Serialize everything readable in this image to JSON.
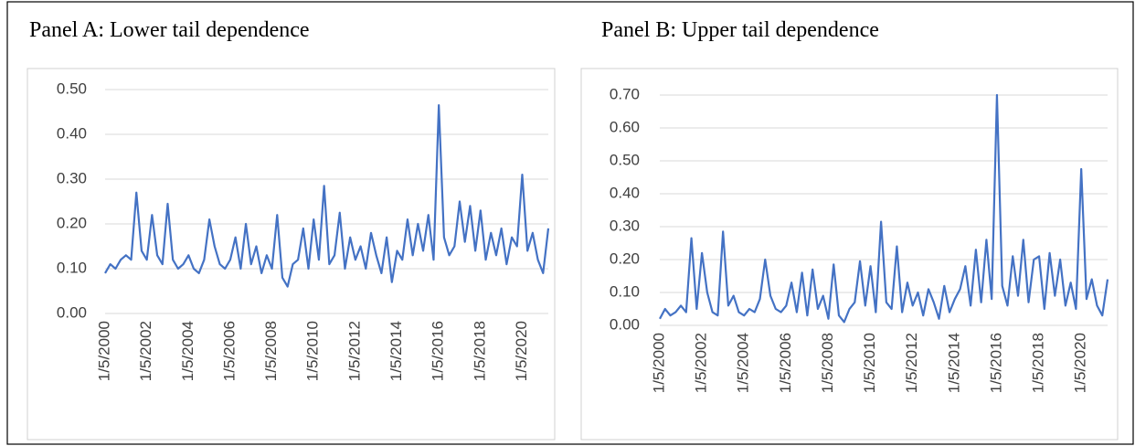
{
  "chart_data": [
    {
      "type": "line",
      "title": "Panel A: Lower tail dependence",
      "categories": [
        "1/5/2000",
        null,
        null,
        null,
        null,
        null,
        null,
        null,
        "1/5/2002",
        null,
        null,
        null,
        null,
        null,
        null,
        null,
        "1/5/2004",
        null,
        null,
        null,
        null,
        null,
        null,
        null,
        "1/5/2006",
        null,
        null,
        null,
        null,
        null,
        null,
        null,
        "1/5/2008",
        null,
        null,
        null,
        null,
        null,
        null,
        null,
        "1/5/2010",
        null,
        null,
        null,
        null,
        null,
        null,
        null,
        "1/5/2012",
        null,
        null,
        null,
        null,
        null,
        null,
        null,
        "1/5/2014",
        null,
        null,
        null,
        null,
        null,
        null,
        null,
        "1/5/2016",
        null,
        null,
        null,
        null,
        null,
        null,
        null,
        "1/5/2018",
        null,
        null,
        null,
        null,
        null,
        null,
        null,
        "1/5/2020",
        null,
        null,
        null,
        null,
        null
      ],
      "values": [
        0.09,
        0.11,
        0.1,
        0.12,
        0.13,
        0.12,
        0.27,
        0.14,
        0.12,
        0.22,
        0.13,
        0.11,
        0.245,
        0.12,
        0.1,
        0.11,
        0.13,
        0.1,
        0.09,
        0.12,
        0.21,
        0.15,
        0.11,
        0.1,
        0.12,
        0.17,
        0.1,
        0.2,
        0.11,
        0.15,
        0.09,
        0.13,
        0.1,
        0.22,
        0.08,
        0.06,
        0.11,
        0.12,
        0.19,
        0.1,
        0.21,
        0.12,
        0.285,
        0.11,
        0.13,
        0.225,
        0.1,
        0.17,
        0.12,
        0.15,
        0.1,
        0.18,
        0.13,
        0.09,
        0.17,
        0.07,
        0.14,
        0.12,
        0.21,
        0.13,
        0.2,
        0.14,
        0.22,
        0.12,
        0.465,
        0.17,
        0.13,
        0.15,
        0.25,
        0.16,
        0.24,
        0.14,
        0.23,
        0.12,
        0.18,
        0.13,
        0.19,
        0.11,
        0.17,
        0.15,
        0.31,
        0.14,
        0.18,
        0.12,
        0.09,
        0.19
      ],
      "color": "#4472c4",
      "ylim": [
        0,
        0.5
      ],
      "yticks": [
        {
          "value": 0,
          "label": "0.00"
        },
        {
          "value": 0.1,
          "label": "0.10"
        },
        {
          "value": 0.2,
          "label": "0.20"
        },
        {
          "value": 0.3,
          "label": "0.30"
        },
        {
          "value": 0.4,
          "label": "0.40"
        },
        {
          "value": 0.5,
          "label": "0.50"
        }
      ],
      "grid": true
    },
    {
      "type": "line",
      "title": "Panel B: Upper tail dependence",
      "categories": [
        "1/5/2000",
        null,
        null,
        null,
        null,
        null,
        null,
        null,
        "1/5/2002",
        null,
        null,
        null,
        null,
        null,
        null,
        null,
        "1/5/2004",
        null,
        null,
        null,
        null,
        null,
        null,
        null,
        "1/5/2006",
        null,
        null,
        null,
        null,
        null,
        null,
        null,
        "1/5/2008",
        null,
        null,
        null,
        null,
        null,
        null,
        null,
        "1/5/2010",
        null,
        null,
        null,
        null,
        null,
        null,
        null,
        "1/5/2012",
        null,
        null,
        null,
        null,
        null,
        null,
        null,
        "1/5/2014",
        null,
        null,
        null,
        null,
        null,
        null,
        null,
        "1/5/2016",
        null,
        null,
        null,
        null,
        null,
        null,
        null,
        "1/5/2018",
        null,
        null,
        null,
        null,
        null,
        null,
        null,
        "1/5/2020",
        null,
        null,
        null,
        null,
        null
      ],
      "values": [
        0.02,
        0.05,
        0.03,
        0.04,
        0.06,
        0.04,
        0.265,
        0.05,
        0.22,
        0.1,
        0.04,
        0.03,
        0.285,
        0.06,
        0.09,
        0.04,
        0.03,
        0.05,
        0.04,
        0.08,
        0.2,
        0.09,
        0.05,
        0.04,
        0.06,
        0.13,
        0.04,
        0.16,
        0.03,
        0.17,
        0.05,
        0.09,
        0.02,
        0.185,
        0.03,
        0.01,
        0.05,
        0.07,
        0.195,
        0.06,
        0.18,
        0.04,
        0.315,
        0.07,
        0.05,
        0.24,
        0.04,
        0.13,
        0.06,
        0.1,
        0.03,
        0.11,
        0.07,
        0.02,
        0.12,
        0.04,
        0.08,
        0.11,
        0.18,
        0.06,
        0.23,
        0.07,
        0.26,
        0.08,
        0.7,
        0.12,
        0.06,
        0.21,
        0.09,
        0.26,
        0.07,
        0.2,
        0.21,
        0.05,
        0.22,
        0.09,
        0.2,
        0.06,
        0.13,
        0.05,
        0.475,
        0.08,
        0.14,
        0.06,
        0.03,
        0.14
      ],
      "color": "#4472c4",
      "ylim": [
        0,
        0.7
      ],
      "yticks": [
        {
          "value": 0,
          "label": "0.00"
        },
        {
          "value": 0.1,
          "label": "0.10"
        },
        {
          "value": 0.2,
          "label": "0.20"
        },
        {
          "value": 0.3,
          "label": "0.30"
        },
        {
          "value": 0.4,
          "label": "0.40"
        },
        {
          "value": 0.5,
          "label": "0.50"
        },
        {
          "value": 0.6,
          "label": "0.60"
        },
        {
          "value": 0.7,
          "label": "0.70"
        }
      ],
      "grid": true
    }
  ]
}
